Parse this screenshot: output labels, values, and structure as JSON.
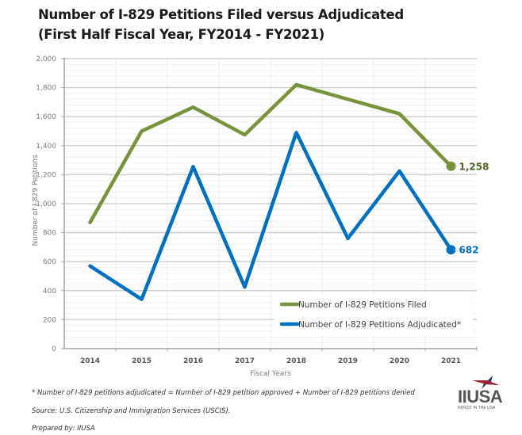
{
  "chart_data": {
    "type": "line",
    "title": "Number of I-829 Petitions Filed versus Adjudicated",
    "subtitle": "(First Half Fiscal Year, FY2014 - FY2021)",
    "xlabel": "Fiscal Years",
    "ylabel": "Number of I-829 Petitions",
    "categories": [
      "2014",
      "2015",
      "2016",
      "2017",
      "2018",
      "2019",
      "2020",
      "2021"
    ],
    "ylim": [
      0,
      2000
    ],
    "yticks": [
      0,
      200,
      400,
      600,
      800,
      1000,
      1200,
      1400,
      1600,
      1800,
      2000
    ],
    "ytick_labels": [
      "0",
      "200",
      "400",
      "600",
      "800",
      "1,000",
      "1,200",
      "1,400",
      "1,600",
      "1,800",
      "2,000"
    ],
    "grid": true,
    "legend_position": "bottom-right inside",
    "series": [
      {
        "name": "Number of I-829 Petitions Filed",
        "color": "#77933c",
        "values": [
          870,
          1500,
          1665,
          1475,
          1820,
          1720,
          1620,
          1258
        ],
        "end_label": "1,258"
      },
      {
        "name": "Number of I-829 Petitions Adjudicated*",
        "color": "#0070c0",
        "values": [
          570,
          340,
          1255,
          425,
          1490,
          760,
          1225,
          682
        ],
        "end_label": "682"
      }
    ]
  },
  "footnotes": {
    "definition": "* Number of I-829 petitions adjudicated = Number of I-829 petition approved + Number of I-829 petitions denied",
    "source": "Source: U.S. Citizenship and Immigration Services (USCIS).",
    "prepared_by": "Prepared by: IIUSA"
  },
  "logo": {
    "name": "IIUSA",
    "tagline": "INVEST IN THE USA"
  }
}
